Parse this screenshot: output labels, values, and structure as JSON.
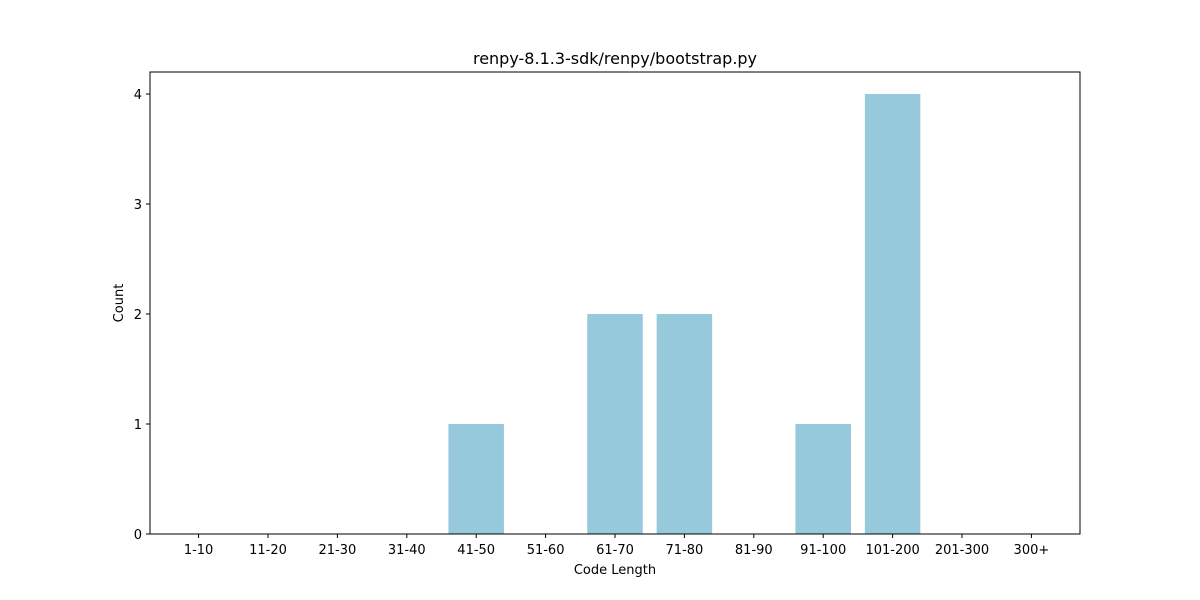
{
  "chart_data": {
    "type": "bar",
    "title": "renpy-8.1.3-sdk/renpy/bootstrap.py",
    "xlabel": "Code Length",
    "ylabel": "Count",
    "categories": [
      "1-10",
      "11-20",
      "21-30",
      "31-40",
      "41-50",
      "51-60",
      "61-70",
      "71-80",
      "81-90",
      "91-100",
      "101-200",
      "201-300",
      "300+"
    ],
    "values": [
      0,
      0,
      0,
      0,
      1,
      0,
      2,
      2,
      0,
      1,
      4,
      0,
      0
    ],
    "yticks": [
      "0",
      "1",
      "2",
      "3",
      "4"
    ],
    "ylim": [
      0,
      4.2
    ],
    "grid": false,
    "bar_color": "#96c9dc"
  }
}
